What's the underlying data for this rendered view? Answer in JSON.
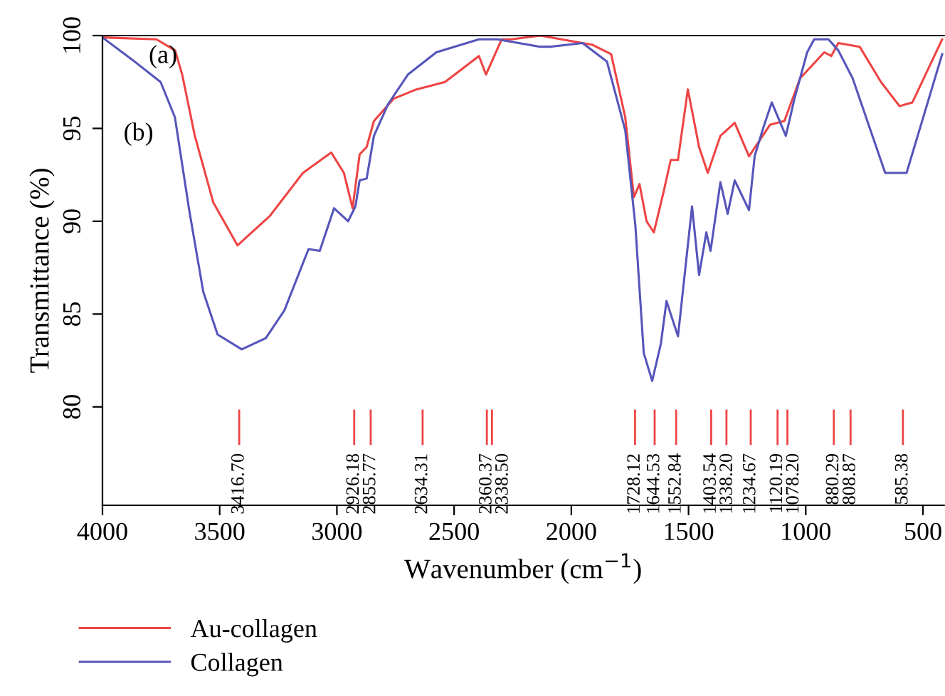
{
  "chart_data": {
    "type": "line",
    "xlabel": "Wavenumber (cm$^{−1}$)",
    "ylabel": "Transmittance (%)",
    "xlim": [
      4000,
      410
    ],
    "ylim": [
      74.7,
      100
    ],
    "xticks": [
      4000,
      3500,
      3000,
      2500,
      2000,
      1500,
      1000,
      500
    ],
    "yticks": [
      80,
      85,
      90,
      95,
      100
    ],
    "grid": false,
    "legend": "bottom left",
    "line_style": "solid",
    "series": [
      {
        "name": "Au-collagen",
        "color": "#ee4444",
        "x": [
          4000,
          3770,
          3690,
          3660,
          3606,
          3527,
          3424,
          3285,
          3145,
          3024,
          2970,
          2933,
          2903,
          2873,
          2842,
          2758,
          2661,
          2539,
          2394,
          2364,
          2297,
          2255,
          2133,
          1909,
          1830,
          1770,
          1733,
          1709,
          1679,
          1648,
          1606,
          1576,
          1545,
          1503,
          1455,
          1418,
          1364,
          1303,
          1242,
          1152,
          1091,
          1024,
          921,
          891,
          861,
          770,
          679,
          600,
          545,
          418
        ],
        "values": [
          99.9,
          99.8,
          99.2,
          97.9,
          94.6,
          91.0,
          88.7,
          90.3,
          92.6,
          93.7,
          92.6,
          90.7,
          93.6,
          94.0,
          95.4,
          96.6,
          97.1,
          97.5,
          98.9,
          97.9,
          99.8,
          99.8,
          100,
          99.5,
          99.0,
          95.6,
          91.3,
          92.0,
          90.0,
          89.4,
          91.6,
          93.3,
          93.3,
          97.1,
          94.0,
          92.6,
          94.6,
          95.3,
          93.5,
          95.2,
          95.4,
          97.7,
          99.1,
          98.9,
          99.6,
          99.4,
          97.5,
          96.2,
          96.4,
          99.8
        ]
      },
      {
        "name": "Collagen",
        "color": "#5555bb",
        "x": [
          4000,
          3873,
          3752,
          3691,
          3630,
          3570,
          3509,
          3406,
          3303,
          3224,
          3121,
          3073,
          3012,
          2952,
          2921,
          2903,
          2873,
          2842,
          2782,
          2697,
          2576,
          2394,
          2315,
          2133,
          2091,
          1952,
          1848,
          1770,
          1727,
          1691,
          1655,
          1618,
          1594,
          1545,
          1485,
          1455,
          1424,
          1406,
          1364,
          1333,
          1303,
          1242,
          1218,
          1182,
          1145,
          1085,
          1048,
          994,
          964,
          903,
          861,
          800,
          661,
          570,
          418
        ],
        "values": [
          99.9,
          98.7,
          97.5,
          95.6,
          90.6,
          86.2,
          83.9,
          83.1,
          83.7,
          85.2,
          88.5,
          88.4,
          90.7,
          90.0,
          90.8,
          92.2,
          92.3,
          94.6,
          96.3,
          97.9,
          99.1,
          99.8,
          99.8,
          99.4,
          99.4,
          99.6,
          98.6,
          94.9,
          89.8,
          82.9,
          81.4,
          83.4,
          85.7,
          83.8,
          90.8,
          87.1,
          89.4,
          88.4,
          92.1,
          90.4,
          92.2,
          90.6,
          93.5,
          95.0,
          96.4,
          94.6,
          96.6,
          99.1,
          99.8,
          99.8,
          99.2,
          97.7,
          92.6,
          92.6,
          99.0
        ]
      }
    ],
    "annotations": [
      "(a)",
      "(b)"
    ],
    "ref_lines": [
      {
        "axis": "x",
        "value": 3416.7,
        "label": "3416.70",
        "color": "#ee4444"
      },
      {
        "axis": "x",
        "value": 2926.18,
        "label": "2926.18",
        "color": "#ee4444"
      },
      {
        "axis": "x",
        "value": 2855.77,
        "label": "2855.77",
        "color": "#ee4444"
      },
      {
        "axis": "x",
        "value": 2634.31,
        "label": "2634.31",
        "color": "#ee4444"
      },
      {
        "axis": "x",
        "value": 2360.37,
        "label": "2360.37",
        "color": "#ee4444"
      },
      {
        "axis": "x",
        "value": 2338.5,
        "label": "2338.50",
        "color": "#ee4444"
      },
      {
        "axis": "x",
        "value": 1728.12,
        "label": "1728.12",
        "color": "#ee4444"
      },
      {
        "axis": "x",
        "value": 1644.53,
        "label": "1644.53",
        "color": "#ee4444"
      },
      {
        "axis": "x",
        "value": 1552.84,
        "label": "1552.84",
        "color": "#ee4444"
      },
      {
        "axis": "x",
        "value": 1403.54,
        "label": "1403.54",
        "color": "#ee4444"
      },
      {
        "axis": "x",
        "value": 1338.2,
        "label": "1338.20",
        "color": "#ee4444"
      },
      {
        "axis": "x",
        "value": 1234.67,
        "label": "1234.67",
        "color": "#ee4444"
      },
      {
        "axis": "x",
        "value": 1120.19,
        "label": "1120.19",
        "color": "#ee4444"
      },
      {
        "axis": "x",
        "value": 1078.2,
        "label": "1078.20",
        "color": "#ee4444"
      },
      {
        "axis": "x",
        "value": 880.29,
        "label": "880.29",
        "color": "#ee4444"
      },
      {
        "axis": "x",
        "value": 808.87,
        "label": "808.87",
        "color": "#ee4444"
      },
      {
        "axis": "x",
        "value": 585.38,
        "label": "585.38",
        "color": "#ee4444"
      }
    ]
  }
}
